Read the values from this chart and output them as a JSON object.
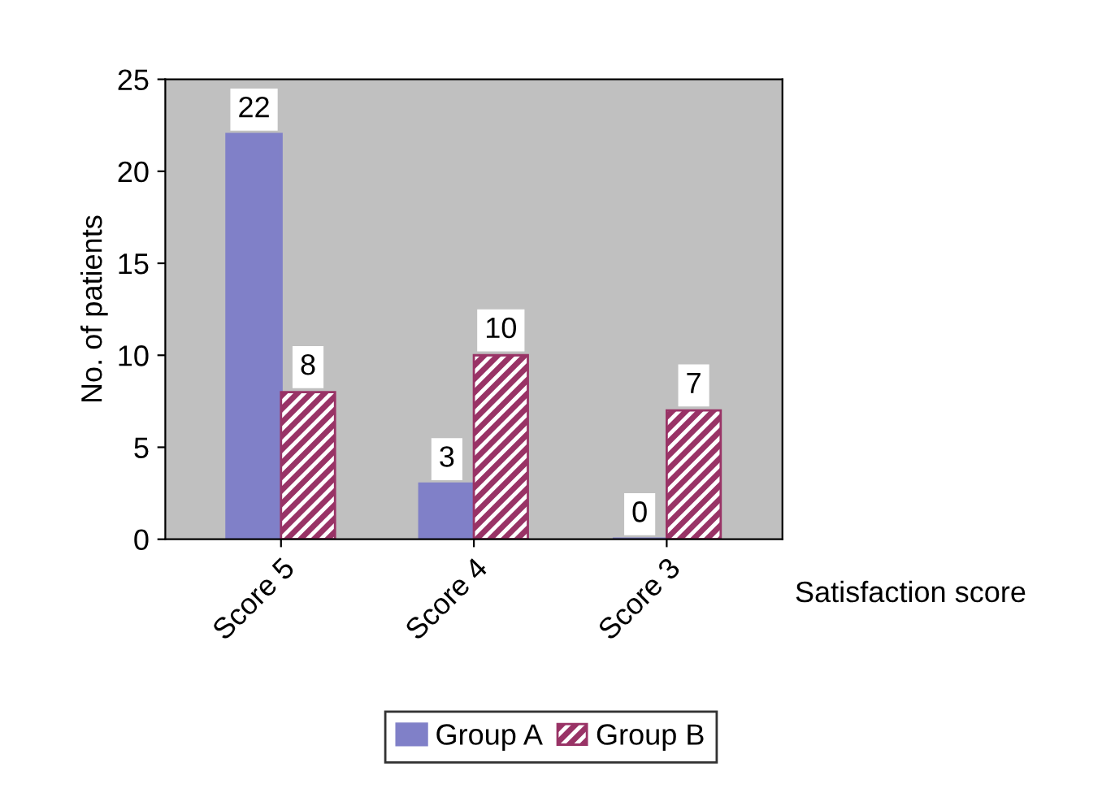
{
  "chart_data": {
    "type": "bar",
    "xlabel": "Satisfaction score",
    "ylabel": "No. of patients",
    "categories": [
      "Score 5",
      "Score 4",
      "Score 3"
    ],
    "series": [
      {
        "name": "Group A",
        "color": "#8080c8",
        "values": [
          22,
          3,
          0
        ]
      },
      {
        "name": "Group B",
        "color": "#993366",
        "values": [
          8,
          10,
          7
        ]
      }
    ],
    "ylim": [
      0,
      25
    ],
    "yticks": [
      0,
      5,
      10,
      15,
      20,
      25
    ],
    "grid": false,
    "legend": "bottom",
    "data_labels": true
  }
}
